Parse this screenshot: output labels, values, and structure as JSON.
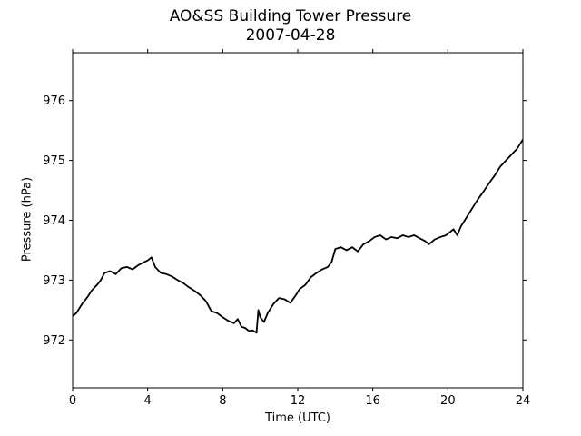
{
  "chart_data": {
    "type": "line",
    "title": "AO&SS Building Tower Pressure",
    "subtitle": "2007-04-28",
    "xlabel": "Time (UTC)",
    "ylabel": "Pressure (hPa)",
    "xlim": [
      0,
      24
    ],
    "ylim": [
      971.2,
      976.8
    ],
    "xticks": [
      0,
      4,
      8,
      12,
      16,
      20,
      24
    ],
    "yticks": [
      972,
      973,
      974,
      975,
      976
    ],
    "grid": false,
    "legend": "none",
    "line_color": "#000000",
    "series": [
      {
        "x": [
          0.0,
          0.2,
          0.5,
          0.8,
          1.0,
          1.3,
          1.5,
          1.7,
          2.0,
          2.3,
          2.6,
          2.9,
          3.2,
          3.5,
          3.8,
          4.0,
          4.2,
          4.4,
          4.7,
          5.0,
          5.3,
          5.6,
          5.9,
          6.2,
          6.5,
          6.8,
          7.1,
          7.4,
          7.7,
          8.0,
          8.3,
          8.6,
          8.8,
          9.0,
          9.2,
          9.4,
          9.6,
          9.8,
          9.9,
          10.0,
          10.2,
          10.4,
          10.7,
          11.0,
          11.3,
          11.6,
          11.9,
          12.1,
          12.4,
          12.7,
          13.0,
          13.3,
          13.6,
          13.8,
          14.0,
          14.3,
          14.6,
          14.9,
          15.2,
          15.5,
          15.8,
          16.1,
          16.4,
          16.7,
          17.0,
          17.3,
          17.6,
          17.9,
          18.2,
          18.5,
          18.8,
          19.0,
          19.3,
          19.6,
          19.9,
          20.1,
          20.3,
          20.5,
          20.7,
          21.0,
          21.3,
          21.6,
          21.9,
          22.2,
          22.5,
          22.8,
          23.1,
          23.4,
          23.7,
          24.0
        ],
        "y": [
          972.4,
          972.45,
          972.6,
          972.72,
          972.82,
          972.92,
          973.0,
          973.12,
          973.15,
          973.1,
          973.2,
          973.22,
          973.18,
          973.25,
          973.3,
          973.33,
          973.38,
          973.22,
          973.12,
          973.1,
          973.06,
          973.0,
          972.95,
          972.88,
          972.82,
          972.75,
          972.65,
          972.48,
          972.45,
          972.38,
          972.32,
          972.28,
          972.35,
          972.22,
          972.2,
          972.15,
          972.16,
          972.12,
          972.5,
          972.38,
          972.3,
          972.45,
          972.6,
          972.7,
          972.68,
          972.62,
          972.75,
          972.85,
          972.92,
          973.05,
          973.12,
          973.18,
          973.22,
          973.3,
          973.52,
          973.55,
          973.5,
          973.55,
          973.48,
          973.6,
          973.65,
          973.72,
          973.75,
          973.68,
          973.72,
          973.7,
          973.75,
          973.72,
          973.75,
          973.7,
          973.65,
          973.6,
          973.68,
          973.72,
          973.75,
          973.8,
          973.85,
          973.75,
          973.9,
          974.05,
          974.2,
          974.35,
          974.48,
          974.62,
          974.75,
          974.9,
          975.0,
          975.1,
          975.2,
          975.35
        ]
      }
    ]
  }
}
